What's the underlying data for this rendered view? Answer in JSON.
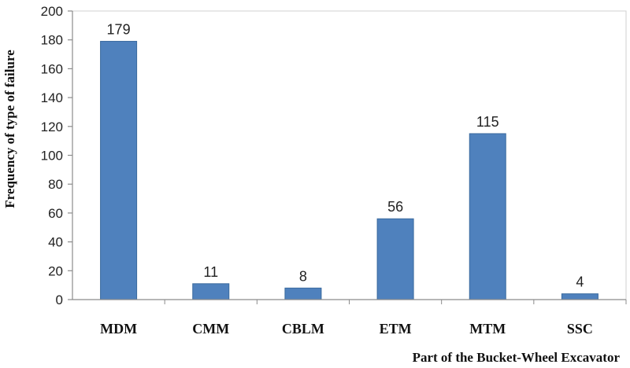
{
  "chart_data": {
    "type": "bar",
    "categories": [
      "MDM",
      "CMM",
      "CBLM",
      "ETM",
      "MTM",
      "SSC"
    ],
    "values": [
      179,
      11,
      8,
      56,
      115,
      4
    ],
    "data_labels": [
      "179",
      "11",
      "8",
      "56",
      "115",
      "4"
    ],
    "title": "",
    "xlabel": "Part of the Bucket-Wheel Excavator",
    "ylabel": "Frequency of type of failure",
    "ylim": [
      0,
      200
    ],
    "yticks": [
      0,
      20,
      40,
      60,
      80,
      100,
      120,
      140,
      160,
      180,
      200
    ],
    "ytick_labels": [
      "0",
      "20",
      "40",
      "60",
      "80",
      "100",
      "120",
      "140",
      "160",
      "180",
      "200"
    ],
    "grid": false,
    "legend": "none",
    "bar_color": "#4f81bd",
    "bar_edge_color": "#3a6a9e"
  }
}
